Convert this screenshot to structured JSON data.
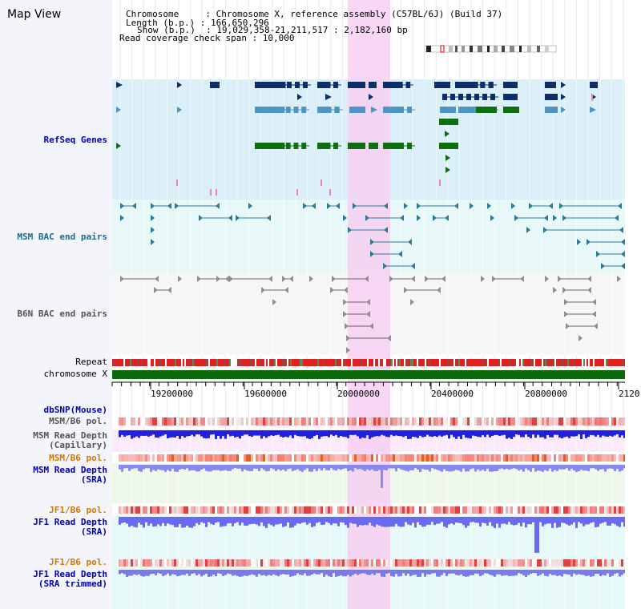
{
  "view": {
    "title": "Map View"
  },
  "info": {
    "line1": "Chromosome     : Chromosome X, reference assembly (C57BL/6J) (Build 37)",
    "line2": "Length (b.p.) : 166,650,296",
    "line3": "Show (b.p.)  : 19,029,358-21,211,517 : 2,182,160 bp",
    "line4": "Read coverage check span : 10,000"
  },
  "tracks": {
    "refseq": "RefSeq Genes",
    "msm_bac": "MSM BAC end pairs",
    "b6n_bac": "B6N BAC end pairs",
    "repeat": "Repeat",
    "chromosome": "chromosome X",
    "dbsnp": "dbSNP(Mouse)",
    "msm_pol_1": "MSM/B6 pol.",
    "msm_depth_cap_1": "MSM Read Depth",
    "msm_depth_cap_2": "(Capillary)",
    "msm_pol_2": "MSM/B6 pol.",
    "msm_depth_sra_1": "MSM Read Depth",
    "msm_depth_sra_2": "(SRA)",
    "jf1_pol_1": "JF1/B6 pol.",
    "jf1_depth_sra_1": "JF1 Read Depth",
    "jf1_depth_sra_2": "(SRA)",
    "jf1_pol_2": "JF1/B6 pol.",
    "jf1_depth_trim_1": "JF1 Read Depth",
    "jf1_depth_trim_2": "(SRA trimmed)"
  },
  "axis": {
    "ticks": [
      "19200000",
      "19600000",
      "20000000",
      "20400000",
      "20800000",
      "2120"
    ]
  },
  "colors": {
    "refseq_bg": "#dbeff9",
    "msm_bac_bg": "#e8f8f8",
    "b6n_bac_bg": "#f6f6f6",
    "highlight": "#f6d0f2",
    "gene_dark": "#0b2f66",
    "gene_mid": "#4f95c4",
    "gene_green": "#0e6e10",
    "msm_bac": "#2a7c96",
    "b6n_bac": "#8f8f8f",
    "repeat": "#e02020",
    "chromosome": "#0c6a0c",
    "label_blue": "#0000b0",
    "label_orange": "#d07800",
    "label_teal": "#1a6e8c",
    "label_gray": "#555555"
  }
}
